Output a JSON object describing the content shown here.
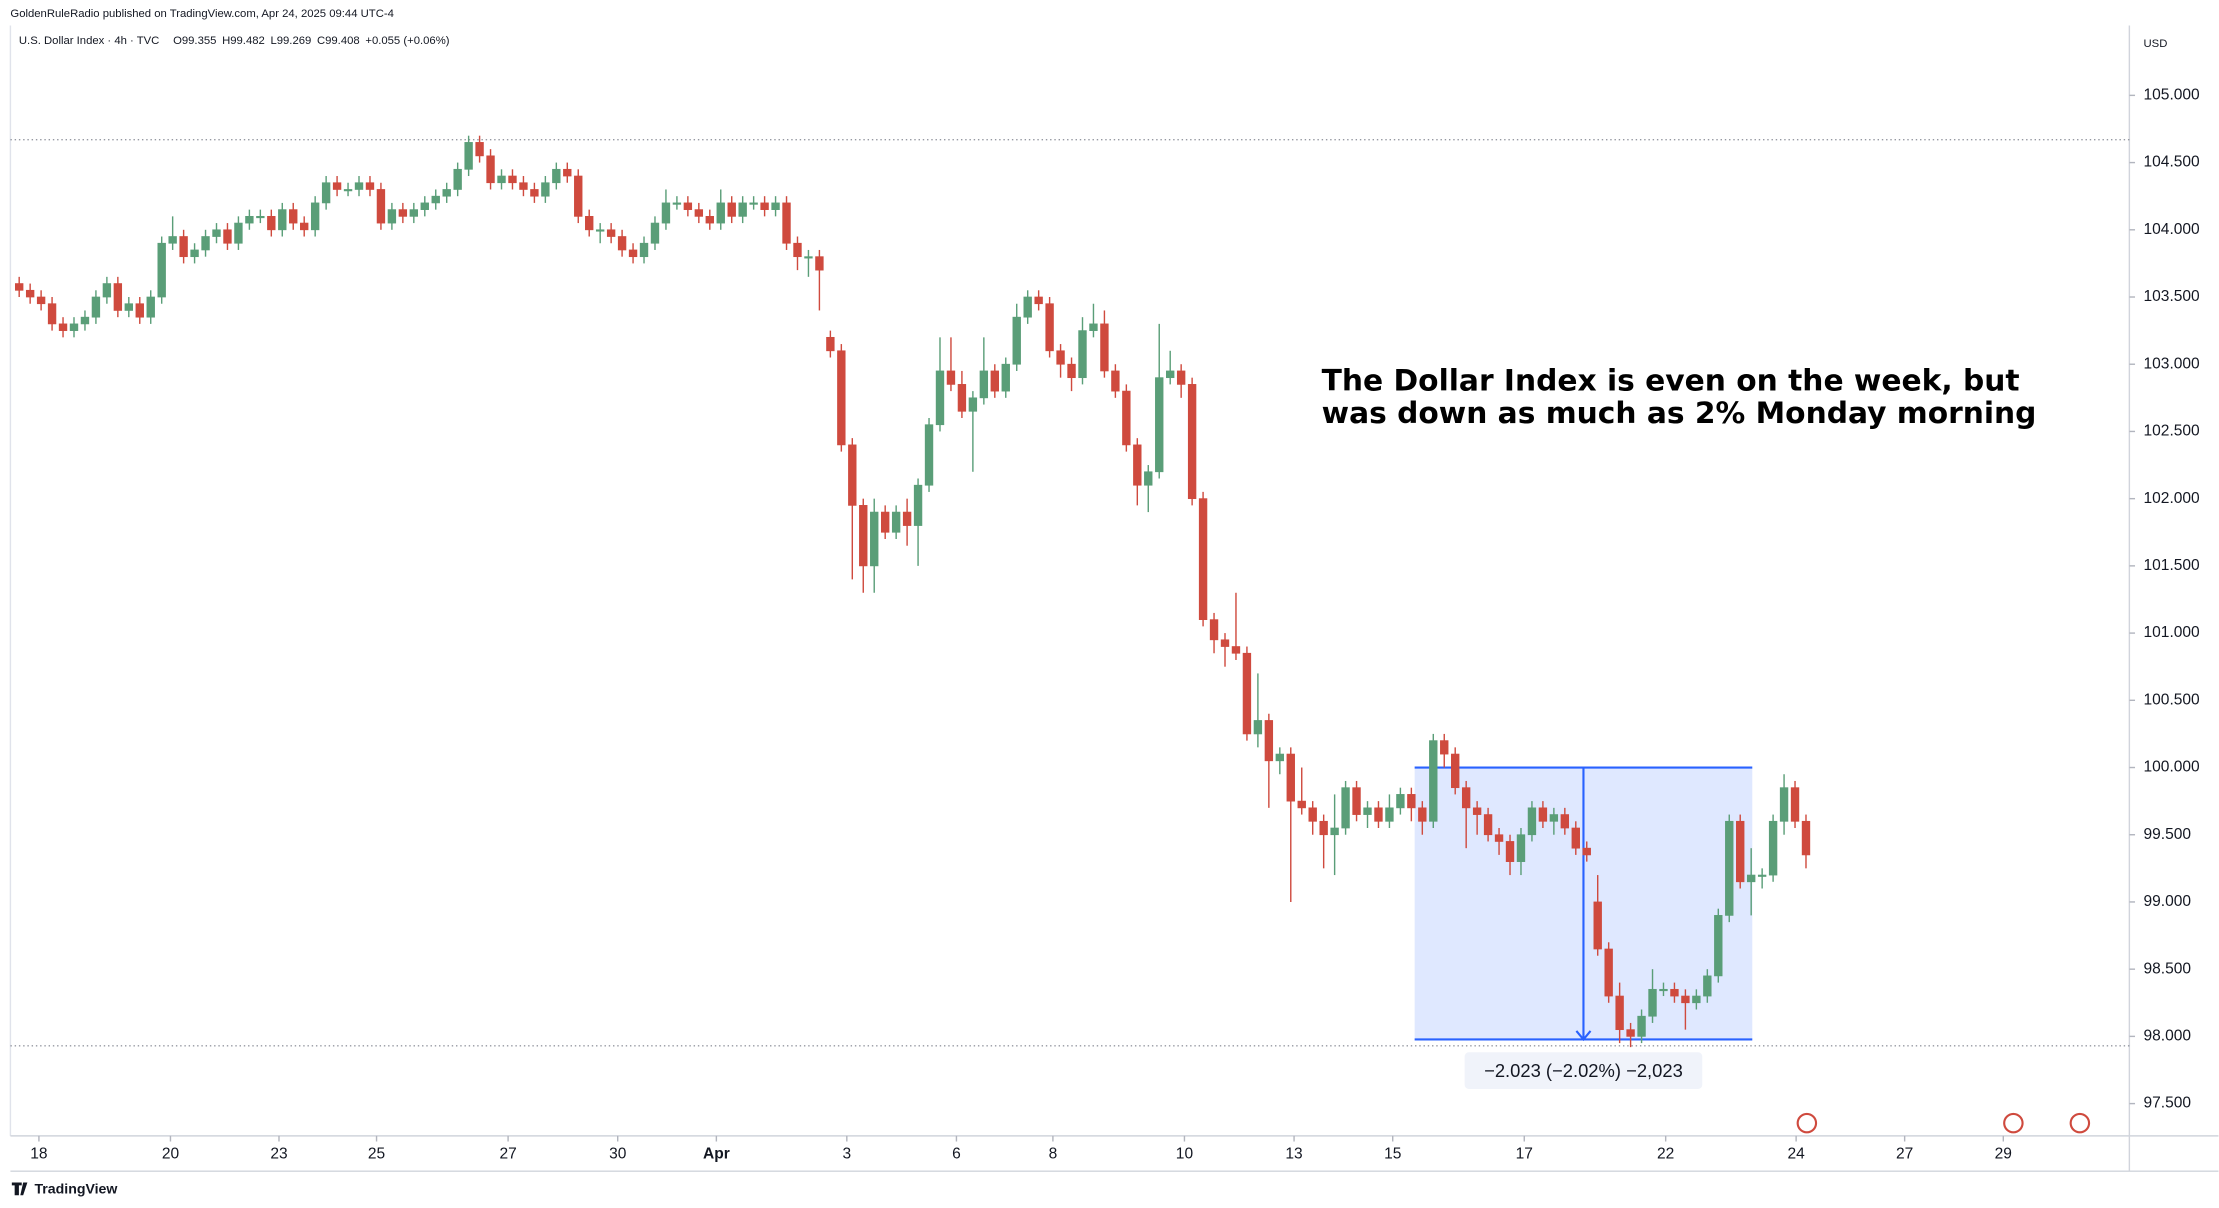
{
  "chart_data": {
    "type": "candlestick",
    "publisher": "GoldenRuleRadio published on TradingView.com, Apr 24, 2025 09:44 UTC-4",
    "symbol": "U.S. Dollar Index · 4h · TVC",
    "legend": [
      "O99.355",
      "H99.482",
      "L99.269",
      "C99.408",
      "+0.055 (+0.06%)"
    ],
    "currency": "USD",
    "annotation": [
      "The Dollar Index is even on the week, but",
      "was down as much as 2% Monday morning"
    ],
    "measure_box": {
      "label": "−2.023 (−2.02%) −2,023",
      "ylim": [
        97.977,
        100.0
      ],
      "xlim": [
        127.3,
        158.1
      ],
      "color": "#2962ff"
    },
    "price_lines": [
      104.67,
      97.93
    ],
    "logo": "TradingView",
    "up_color": "#5a9e78",
    "down_color": "#cf4a3e",
    "xlim": [
      -0.8,
      192.5
    ],
    "xticks": [
      {
        "value": 1.8,
        "label": "18"
      },
      {
        "value": 13.8,
        "label": "20"
      },
      {
        "value": 23.7,
        "label": "23"
      },
      {
        "value": 32.6,
        "label": "25"
      },
      {
        "value": 44.6,
        "label": "27"
      },
      {
        "value": 54.6,
        "label": "30"
      },
      {
        "value": 63.6,
        "label": "Apr"
      },
      {
        "value": 75.5,
        "label": "3"
      },
      {
        "value": 85.5,
        "label": "6"
      },
      {
        "value": 94.3,
        "label": "8"
      },
      {
        "value": 106.3,
        "label": "10"
      },
      {
        "value": 116.3,
        "label": "13"
      },
      {
        "value": 125.3,
        "label": "15"
      },
      {
        "value": 137.3,
        "label": "17"
      },
      {
        "value": 150.2,
        "label": "22"
      },
      {
        "value": 162.1,
        "label": "24"
      },
      {
        "value": 172.0,
        "label": "27"
      },
      {
        "value": 181.0,
        "label": "29"
      }
    ],
    "ylim": [
      97.26,
      105.52
    ],
    "yticks": [
      {
        "value": 97.5,
        "label": "97.500"
      },
      {
        "value": 98,
        "label": "98.000"
      },
      {
        "value": 98.5,
        "label": "98.500"
      },
      {
        "value": 99,
        "label": "99.000"
      },
      {
        "value": 99.5,
        "label": "99.500"
      },
      {
        "value": 100,
        "label": "100.000"
      },
      {
        "value": 100.5,
        "label": "100.500"
      },
      {
        "value": 101,
        "label": "101.000"
      },
      {
        "value": 101.5,
        "label": "101.500"
      },
      {
        "value": 102,
        "label": "102.000"
      },
      {
        "value": 102.5,
        "label": "102.500"
      },
      {
        "value": 103,
        "label": "103.000"
      },
      {
        "value": 103.5,
        "label": "103.500"
      },
      {
        "value": 104,
        "label": "104.000"
      },
      {
        "value": 104.5,
        "label": "104.500"
      },
      {
        "value": 105,
        "label": "105.000"
      }
    ],
    "open": [
      103.6,
      103.55,
      103.5,
      103.45,
      103.3,
      103.25,
      103.3,
      103.35,
      103.5,
      103.6,
      103.4,
      103.45,
      103.35,
      103.5,
      103.9,
      103.95,
      103.8,
      103.85,
      103.95,
      104.0,
      103.9,
      104.05,
      104.1,
      104.1,
      104.0,
      104.15,
      104.05,
      104.0,
      104.2,
      104.35,
      104.3,
      104.3,
      104.35,
      104.3,
      104.05,
      104.15,
      104.1,
      104.15,
      104.2,
      104.25,
      104.3,
      104.45,
      104.65,
      104.55,
      104.35,
      104.4,
      104.35,
      104.3,
      104.25,
      104.35,
      104.45,
      104.4,
      104.1,
      104.0,
      104.0,
      103.95,
      103.85,
      103.8,
      103.9,
      104.05,
      104.2,
      104.2,
      104.15,
      104.1,
      104.05,
      104.2,
      104.1,
      104.2,
      104.2,
      104.15,
      104.2,
      103.9,
      103.8,
      103.8,
      103.2,
      103.1,
      102.4,
      101.95,
      101.5,
      101.9,
      101.75,
      101.9,
      101.8,
      102.1,
      102.55,
      102.95,
      102.85,
      102.65,
      102.75,
      102.95,
      102.8,
      103.0,
      103.35,
      103.5,
      103.45,
      103.1,
      103.0,
      102.9,
      103.25,
      103.3,
      102.95,
      102.8,
      102.4,
      102.1,
      102.2,
      102.9,
      102.95,
      102.85,
      102.0,
      101.1,
      100.95,
      100.9,
      100.85,
      100.25,
      100.35,
      100.05,
      100.1,
      99.75,
      99.7,
      99.6,
      99.5,
      99.55,
      99.85,
      99.65,
      99.7,
      99.6,
      99.7,
      99.8,
      99.7,
      99.6,
      100.2,
      100.1,
      99.85,
      99.7,
      99.65,
      99.5,
      99.45,
      99.3,
      99.5,
      99.7,
      99.6,
      99.65,
      99.55,
      99.4,
      99.0,
      98.65,
      98.3,
      98.05,
      98.0,
      98.15,
      98.35,
      98.35,
      98.3,
      98.25,
      98.3,
      98.45,
      98.9,
      99.6,
      99.15,
      99.2,
      99.2,
      99.6,
      99.85,
      99.6
    ],
    "high": [
      103.65,
      103.6,
      103.55,
      103.5,
      103.35,
      103.35,
      103.4,
      103.55,
      103.65,
      103.65,
      103.5,
      103.5,
      103.55,
      103.95,
      104.1,
      104.0,
      103.9,
      104.0,
      104.05,
      104.05,
      104.1,
      104.15,
      104.15,
      104.15,
      104.2,
      104.2,
      104.1,
      104.25,
      104.4,
      104.4,
      104.35,
      104.4,
      104.4,
      104.35,
      104.2,
      104.2,
      104.2,
      104.25,
      104.3,
      104.35,
      104.5,
      104.7,
      104.7,
      104.6,
      104.45,
      104.45,
      104.4,
      104.35,
      104.4,
      104.5,
      104.5,
      104.45,
      104.15,
      104.05,
      104.05,
      104.0,
      103.9,
      103.95,
      104.1,
      104.3,
      104.25,
      104.25,
      104.2,
      104.15,
      104.3,
      104.25,
      104.25,
      104.25,
      104.25,
      104.25,
      104.25,
      103.95,
      103.85,
      103.85,
      103.25,
      103.15,
      102.45,
      102.0,
      102.0,
      101.95,
      101.95,
      102.0,
      102.15,
      102.6,
      103.2,
      103.2,
      102.95,
      102.8,
      103.2,
      103.0,
      103.05,
      103.45,
      103.55,
      103.55,
      103.5,
      103.15,
      103.05,
      103.35,
      103.45,
      103.4,
      103.0,
      102.85,
      102.45,
      102.25,
      103.3,
      103.1,
      103.0,
      102.9,
      102.05,
      101.15,
      101.0,
      101.3,
      100.9,
      100.7,
      100.4,
      100.15,
      100.15,
      100.0,
      99.75,
      99.65,
      99.8,
      99.9,
      99.9,
      99.75,
      99.75,
      99.8,
      99.85,
      99.85,
      99.75,
      100.25,
      100.25,
      100.15,
      99.9,
      99.75,
      99.7,
      99.55,
      99.5,
      99.55,
      99.75,
      99.75,
      99.7,
      99.7,
      99.6,
      99.45,
      99.2,
      98.7,
      98.4,
      98.1,
      98.2,
      98.5,
      98.4,
      98.4,
      98.35,
      98.35,
      98.5,
      98.95,
      99.65,
      99.65,
      99.4,
      99.25,
      99.65,
      99.95,
      99.9,
      99.65
    ],
    "low": [
      103.5,
      103.45,
      103.4,
      103.25,
      103.2,
      103.2,
      103.25,
      103.3,
      103.45,
      103.35,
      103.35,
      103.3,
      103.3,
      103.45,
      103.85,
      103.75,
      103.75,
      103.8,
      103.9,
      103.85,
      103.85,
      104.0,
      104.05,
      103.95,
      103.95,
      104.0,
      103.95,
      103.95,
      104.15,
      104.25,
      104.25,
      104.25,
      104.25,
      104.0,
      104.0,
      104.05,
      104.05,
      104.1,
      104.15,
      104.2,
      104.25,
      104.4,
      104.5,
      104.3,
      104.3,
      104.3,
      104.25,
      104.2,
      104.2,
      104.3,
      104.35,
      104.05,
      103.95,
      103.9,
      103.9,
      103.8,
      103.75,
      103.75,
      103.85,
      104.0,
      104.15,
      104.1,
      104.05,
      104.0,
      104.0,
      104.05,
      104.05,
      104.15,
      104.1,
      104.1,
      103.85,
      103.7,
      103.65,
      103.4,
      103.05,
      102.35,
      101.4,
      101.3,
      101.3,
      101.7,
      101.7,
      101.65,
      101.5,
      102.05,
      102.5,
      102.8,
      102.6,
      102.2,
      102.7,
      102.75,
      102.75,
      102.95,
      103.3,
      103.4,
      103.05,
      102.9,
      102.8,
      102.85,
      103.2,
      102.9,
      102.75,
      102.35,
      101.95,
      101.9,
      102.15,
      102.85,
      102.75,
      101.95,
      101.05,
      100.85,
      100.75,
      100.8,
      100.2,
      100.15,
      99.7,
      99.95,
      99.0,
      99.65,
      99.5,
      99.25,
      99.2,
      99.5,
      99.6,
      99.55,
      99.55,
      99.55,
      99.65,
      99.6,
      99.5,
      99.55,
      100.0,
      99.8,
      99.4,
      99.5,
      99.45,
      99.35,
      99.2,
      99.2,
      99.45,
      99.55,
      99.5,
      99.5,
      99.35,
      99.3,
      98.6,
      98.25,
      97.95,
      97.92,
      97.95,
      98.1,
      98.3,
      98.25,
      98.05,
      98.2,
      98.25,
      98.4,
      98.85,
      99.1,
      98.9,
      99.1,
      99.15,
      99.5,
      99.55,
      99.25
    ],
    "close": [
      103.55,
      103.5,
      103.45,
      103.3,
      103.25,
      103.3,
      103.35,
      103.5,
      103.6,
      103.4,
      103.45,
      103.35,
      103.5,
      103.9,
      103.95,
      103.8,
      103.85,
      103.95,
      104.0,
      103.9,
      104.05,
      104.1,
      104.1,
      104.0,
      104.15,
      104.05,
      104.0,
      104.2,
      104.35,
      104.3,
      104.3,
      104.35,
      104.3,
      104.05,
      104.15,
      104.1,
      104.15,
      104.2,
      104.25,
      104.3,
      104.45,
      104.65,
      104.55,
      104.35,
      104.4,
      104.35,
      104.3,
      104.25,
      104.35,
      104.45,
      104.4,
      104.1,
      104.0,
      104.0,
      103.95,
      103.85,
      103.8,
      103.9,
      104.05,
      104.2,
      104.2,
      104.15,
      104.1,
      104.05,
      104.2,
      104.1,
      104.2,
      104.2,
      104.15,
      104.2,
      103.9,
      103.8,
      103.8,
      103.7,
      103.1,
      102.4,
      101.95,
      101.5,
      101.9,
      101.75,
      101.9,
      101.8,
      102.1,
      102.55,
      102.95,
      102.85,
      102.65,
      102.75,
      102.95,
      102.8,
      103.0,
      103.35,
      103.5,
      103.45,
      103.1,
      103.0,
      102.9,
      103.25,
      103.3,
      102.95,
      102.8,
      102.4,
      102.1,
      102.2,
      102.9,
      102.95,
      102.85,
      102.0,
      101.1,
      100.95,
      100.9,
      100.85,
      100.25,
      100.35,
      100.05,
      100.1,
      99.75,
      99.7,
      99.6,
      99.5,
      99.55,
      99.85,
      99.65,
      99.7,
      99.6,
      99.7,
      99.8,
      99.7,
      99.6,
      100.2,
      100.1,
      99.85,
      99.7,
      99.65,
      99.5,
      99.45,
      99.3,
      99.5,
      99.7,
      99.6,
      99.65,
      99.55,
      99.4,
      99.35,
      98.65,
      98.3,
      98.05,
      98.0,
      98.15,
      98.35,
      98.35,
      98.3,
      98.25,
      98.3,
      98.45,
      98.9,
      99.6,
      99.15,
      99.2,
      99.2,
      99.6,
      99.85,
      99.6,
      99.35
    ]
  }
}
